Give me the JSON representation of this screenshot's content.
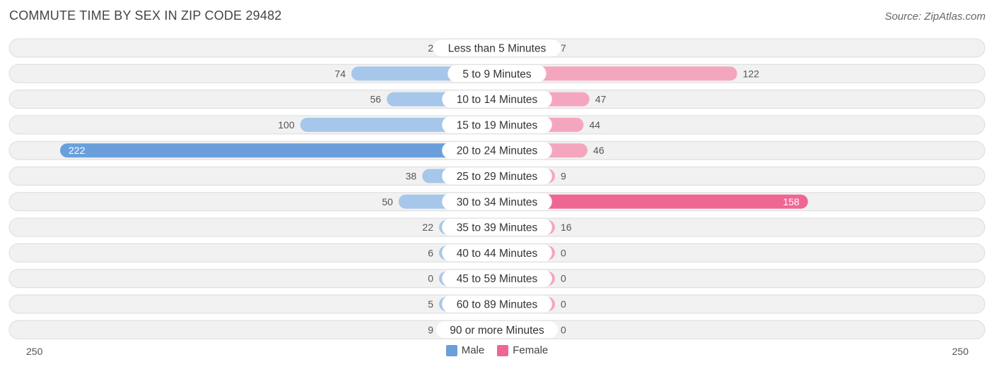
{
  "header": {
    "title": "COMMUTE TIME BY SEX IN ZIP CODE 29482",
    "source": "Source: ZipAtlas.com"
  },
  "colors": {
    "male": "#6a9fdb",
    "male_light": "#a6c7ea",
    "female": "#f06693",
    "female_light": "#f5a6bf",
    "row_bg": "#f1f1f1",
    "row_border": "#dcdcdc"
  },
  "axis": {
    "left_label": "250",
    "right_label": "250"
  },
  "legend": {
    "male_label": "Male",
    "female_label": "Female"
  },
  "chart_data": {
    "type": "bar",
    "orientation": "horizontal-diverging",
    "title": "COMMUTE TIME BY SEX IN ZIP CODE 29482",
    "xlim": [
      -250,
      250
    ],
    "categories": [
      "Less than 5 Minutes",
      "5 to 9 Minutes",
      "10 to 14 Minutes",
      "15 to 19 Minutes",
      "20 to 24 Minutes",
      "25 to 29 Minutes",
      "30 to 34 Minutes",
      "35 to 39 Minutes",
      "40 to 44 Minutes",
      "45 to 59 Minutes",
      "60 to 89 Minutes",
      "90 or more Minutes"
    ],
    "series": [
      {
        "name": "Male",
        "values": [
          2,
          74,
          56,
          100,
          222,
          38,
          50,
          22,
          6,
          0,
          5,
          9
        ]
      },
      {
        "name": "Female",
        "values": [
          7,
          122,
          47,
          44,
          46,
          9,
          158,
          16,
          0,
          0,
          0,
          0
        ]
      }
    ],
    "legend_position": "bottom-center"
  }
}
